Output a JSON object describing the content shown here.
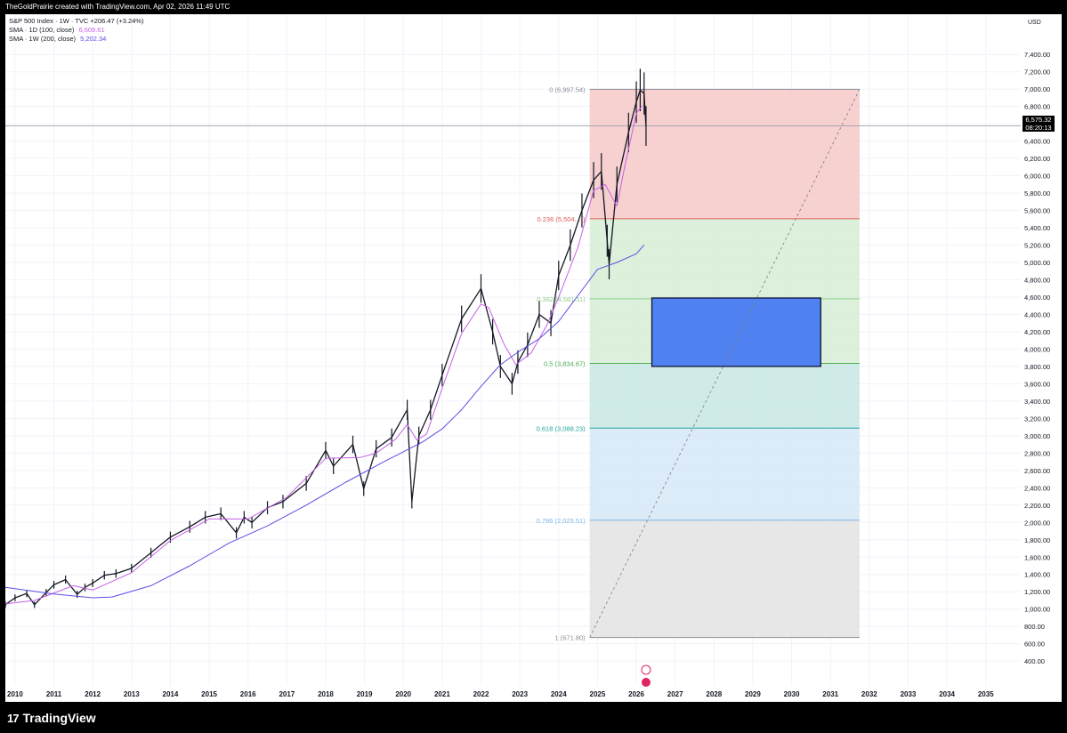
{
  "header": {
    "attribution": "TheGoldPrairie created with TradingView.com, Apr 02, 2026 11:49 UTC"
  },
  "legend": {
    "line1": "S&P 500 Index · 1W · TVC  +206.47 (+3.24%)",
    "sma100_label": "SMA · 1D (100, close)",
    "sma100_value": "6,609.61",
    "sma200_label": "SMA · 1W (200, close)",
    "sma200_value": "5,202.34"
  },
  "axis": {
    "currency": "USD"
  },
  "price_badge": {
    "price": "6,575.32",
    "countdown": "08:20:13"
  },
  "footer": {
    "brand": "TradingView",
    "logo": "17"
  },
  "colors": {
    "candle": "#131722",
    "sma100": "#c561e8",
    "sma200": "#5c4ee6",
    "fib_red": "#f6c8c8",
    "fib_green": "#d6edd5",
    "fib_teal": "#c7e6e3",
    "fib_blue": "#d5e8f7",
    "fib_grey": "#e3e3e3",
    "target_box": "#4f81f0"
  },
  "chart_data": {
    "type": "line",
    "ylabel": "USD",
    "ylim": [
      340,
      7700
    ],
    "xlim": [
      2009.75,
      2035.9
    ],
    "x_ticks": [
      "2010",
      "2011",
      "2012",
      "2013",
      "2014",
      "2015",
      "2016",
      "2017",
      "2018",
      "2019",
      "2020",
      "2021",
      "2022",
      "2023",
      "2024",
      "2025",
      "2026",
      "2027",
      "2028",
      "2029",
      "2030",
      "2031",
      "2032",
      "2033",
      "2034",
      "2035"
    ],
    "y_ticks": [
      400,
      600,
      800,
      1000,
      1200,
      1400,
      1600,
      1800,
      2000,
      2200,
      2400,
      2600,
      2800,
      3000,
      3200,
      3400,
      3600,
      3800,
      4000,
      4200,
      4400,
      4600,
      4800,
      5000,
      5200,
      5400,
      5600,
      5800,
      6000,
      6200,
      6400,
      6600,
      6800,
      7000,
      7200,
      7400
    ],
    "y_tick_labels": [
      "400.00",
      "600.00",
      "800.00",
      "1,000.00",
      "1,200.00",
      "1,400.00",
      "1,600.00",
      "1,800.00",
      "2,000.00",
      "2,200.00",
      "2,400.00",
      "2,600.00",
      "2,800.00",
      "3,000.00",
      "3,200.00",
      "3,400.00",
      "3,600.00",
      "3,800.00",
      "4,000.00",
      "4,200.00",
      "4,400.00",
      "4,600.00",
      "4,800.00",
      "5,000.00",
      "5,200.00",
      "5,400.00",
      "5,600.00",
      "5,800.00",
      "6,000.00",
      "6,200.00",
      "6,400.00",
      "6,600.00",
      "6,800.00",
      "7,000.00",
      "7,200.00",
      "7,400.00"
    ],
    "series": [
      {
        "name": "S&P 500 Index",
        "color": "#131722",
        "x": [
          2009.75,
          2010.0,
          2010.3,
          2010.5,
          2010.8,
          2011.0,
          2011.3,
          2011.6,
          2011.8,
          2012.0,
          2012.3,
          2012.6,
          2013.0,
          2013.5,
          2014.0,
          2014.5,
          2014.9,
          2015.3,
          2015.7,
          2015.9,
          2016.1,
          2016.5,
          2016.9,
          2017.5,
          2018.0,
          2018.2,
          2018.7,
          2018.98,
          2019.3,
          2019.7,
          2020.1,
          2020.22,
          2020.4,
          2020.7,
          2021.0,
          2021.5,
          2022.0,
          2022.3,
          2022.5,
          2022.8,
          2022.95,
          2023.2,
          2023.5,
          2023.8,
          2024.0,
          2024.3,
          2024.6,
          2024.9,
          2025.1,
          2025.25,
          2025.3,
          2025.5,
          2025.8,
          2026.0,
          2026.1,
          2026.2,
          2026.25
        ],
        "values": [
          1050,
          1130,
          1180,
          1050,
          1190,
          1280,
          1340,
          1170,
          1250,
          1300,
          1390,
          1410,
          1470,
          1650,
          1830,
          1950,
          2060,
          2100,
          1880,
          2060,
          2000,
          2170,
          2240,
          2450,
          2830,
          2650,
          2900,
          2390,
          2850,
          2980,
          3300,
          2240,
          3000,
          3300,
          3700,
          4350,
          4700,
          4200,
          3800,
          3600,
          3850,
          4050,
          4400,
          4300,
          4850,
          5200,
          5600,
          5950,
          6050,
          5250,
          4980,
          5900,
          6500,
          6850,
          6990,
          6950,
          6575
        ]
      },
      {
        "name": "SMA · 1D (100, close)",
        "color": "#c561e8",
        "x": [
          2009.75,
          2010.5,
          2011.5,
          2012.0,
          2013.0,
          2014.0,
          2015.0,
          2016.0,
          2017.0,
          2018.0,
          2018.9,
          2019.3,
          2019.8,
          2020.1,
          2020.35,
          2020.6,
          2021.0,
          2021.5,
          2022.0,
          2022.2,
          2022.6,
          2022.9,
          2023.3,
          2023.7,
          2024.0,
          2024.5,
          2024.9,
          2025.2,
          2025.5,
          2025.7,
          2026.0,
          2026.15
        ],
        "values": [
          1060,
          1100,
          1270,
          1220,
          1420,
          1790,
          2040,
          2040,
          2290,
          2740,
          2750,
          2800,
          2960,
          3130,
          2950,
          3020,
          3550,
          4180,
          4520,
          4480,
          4050,
          3820,
          3960,
          4280,
          4600,
          5180,
          5830,
          5900,
          5650,
          6100,
          6720,
          6810
        ]
      },
      {
        "name": "SMA · 1W (200, close)",
        "color": "#5c4ee6",
        "x": [
          2009.75,
          2011.0,
          2012.0,
          2012.5,
          2013.5,
          2014.5,
          2015.5,
          2016.5,
          2017.5,
          2018.5,
          2019.5,
          2020.5,
          2021.0,
          2021.5,
          2022.0,
          2022.5,
          2023.0,
          2023.5,
          2024.0,
          2024.5,
          2025.0,
          2025.5,
          2026.0,
          2026.2
        ],
        "values": [
          1250,
          1175,
          1130,
          1140,
          1270,
          1500,
          1760,
          1960,
          2200,
          2460,
          2700,
          2930,
          3080,
          3300,
          3570,
          3820,
          3980,
          4120,
          4320,
          4620,
          4920,
          5000,
          5100,
          5202
        ]
      }
    ],
    "fib_retracement": {
      "x_start": 2024.8,
      "x_end": 2031.75,
      "levels": [
        {
          "ratio": "0",
          "label": "0 (6,997.54)",
          "price": 6997.54,
          "color": "#8a8d96"
        },
        {
          "ratio": "0.236",
          "label": "0.236 (5,504.…)",
          "price": 5504,
          "color": "#e05a5a"
        },
        {
          "ratio": "0.382",
          "label": "0.382 (4,581.11)",
          "price": 4581.11,
          "color": "#8fcf8b"
        },
        {
          "ratio": "0.5",
          "label": "0.5 (3,834.67)",
          "price": 3834.67,
          "color": "#4caf50"
        },
        {
          "ratio": "0.618",
          "label": "0.618 (3,088.23)",
          "price": 3088.23,
          "color": "#26a69a"
        },
        {
          "ratio": "0.786",
          "label": "0.786 (2,025.51)",
          "price": 2025.51,
          "color": "#7fb6e6"
        },
        {
          "ratio": "1",
          "label": "1 (671.80)",
          "price": 671.8,
          "color": "#8a8d96"
        }
      ]
    },
    "target_zone": {
      "x_start": 2026.4,
      "x_end": 2030.75,
      "y_low": 3800,
      "y_high": 4590
    },
    "trend_line": {
      "x": [
        2024.8,
        2031.75
      ],
      "y": [
        671.8,
        6997.54
      ]
    },
    "current_price": 6575.32
  }
}
